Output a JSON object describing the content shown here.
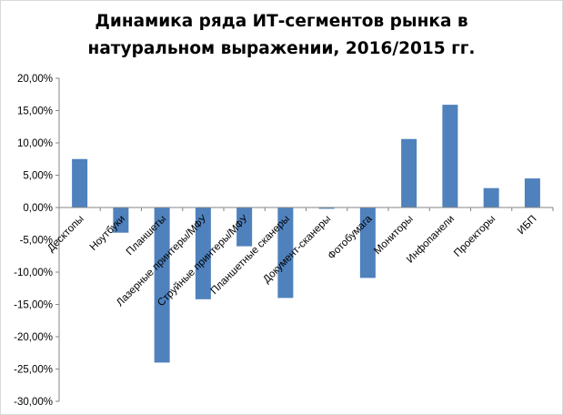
{
  "chart_data": {
    "type": "bar",
    "title_line1": "Динамика ряда ИТ-сегментов рынка в",
    "title_line2": "натуральном выражении, 2016/2015 гг.",
    "categories": [
      "Десктопы",
      "Ноутбуки",
      "Планшеты",
      "Лазерные принтеры/МФУ",
      "Струйные принтеры/МФУ",
      "Планшетные сканеры",
      "Документ-сканеры",
      "Фотобумага",
      "Мониторы",
      "Инфопанели",
      "Проекторы",
      "ИБП"
    ],
    "values": [
      7.5,
      -3.9,
      -24.0,
      -14.2,
      -6.0,
      -14.0,
      -0.2,
      -10.9,
      10.6,
      15.9,
      3.0,
      4.5
    ],
    "ylim": [
      -30,
      20
    ],
    "y_ticks": [
      20,
      15,
      10,
      5,
      0,
      -5,
      -10,
      -15,
      -20,
      -25,
      -30
    ],
    "y_tick_labels": [
      "20,00%",
      "15,00%",
      "10,00%",
      "5,00%",
      "0,00%",
      "-5,00%",
      "-10,00%",
      "-15,00%",
      "-20,00%",
      "-25,00%",
      "-30,00%"
    ],
    "bar_color": "#4f81bd",
    "grid": false,
    "legend": "none"
  }
}
